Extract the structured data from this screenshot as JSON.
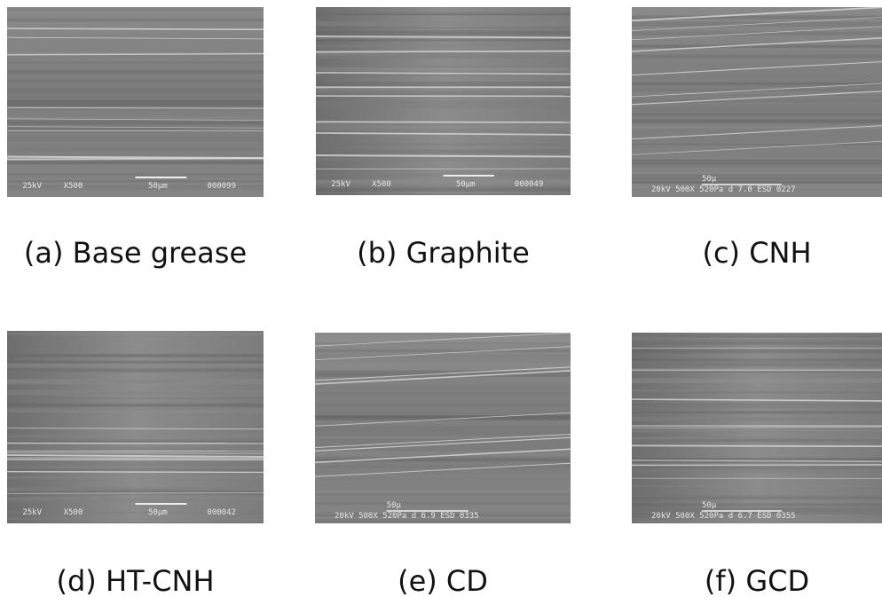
{
  "figure": {
    "panels": [
      {
        "caption": "(a) Base grease",
        "footer": [
          "25kV",
          "X500",
          "000099"
        ],
        "scale": "50μm"
      },
      {
        "caption": "(b) Graphite",
        "footer": [
          "25kV",
          "X500",
          "000049"
        ],
        "scale": "50μm"
      },
      {
        "caption": "(c) CNH",
        "footer": [
          "20kV  500X  520Pa  d 7.0  ESD 0227"
        ],
        "scale": "50μ"
      },
      {
        "caption": "(d) HT-CNH",
        "footer": [
          "25kV",
          "X500",
          "000042"
        ],
        "scale": "50μm"
      },
      {
        "caption": "(e) CD",
        "footer": [
          "20kV  500X  520Pa  d 6.9  ESD 0335"
        ],
        "scale": "50μ"
      },
      {
        "caption": "(f) GCD",
        "footer": [
          "20kV  500X  520Pa  d 6.7  ESD 0355"
        ],
        "scale": "50μ"
      }
    ]
  }
}
